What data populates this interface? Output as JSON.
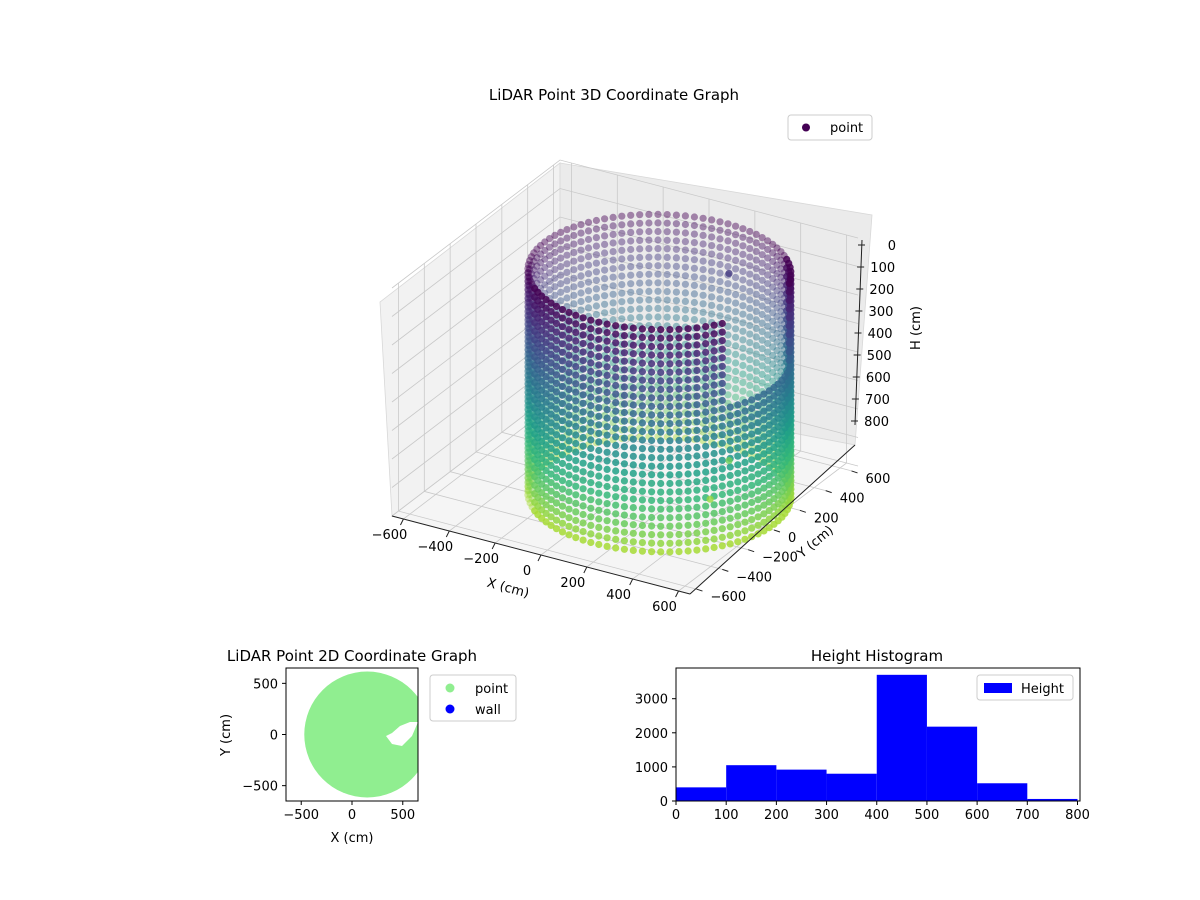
{
  "figure": {
    "background": "#ffffff"
  },
  "chart_data": [
    {
      "type": "scatter",
      "projection": "3d",
      "title": "LiDAR Point 3D Coordinate Graph",
      "xlabel": "X (cm)",
      "ylabel": "Y (cm)",
      "zlabel": "H (cm)",
      "x_ticks": [
        "−600",
        "−400",
        "−200",
        "0",
        "200",
        "400",
        "600"
      ],
      "y_ticks": [
        "−600",
        "−400",
        "−200",
        "0",
        "200",
        "400",
        "600"
      ],
      "z_ticks": [
        "0",
        "100",
        "200",
        "300",
        "400",
        "500",
        "600",
        "700",
        "800"
      ],
      "xlim": [
        -650,
        650
      ],
      "ylim": [
        -650,
        650
      ],
      "zlim": [
        0,
        800
      ],
      "z_inverted": true,
      "grid": true,
      "colormap": "viridis",
      "legend": {
        "position": "top-right",
        "entries": [
          {
            "label": "point",
            "color": "#440154"
          }
        ]
      },
      "shape": {
        "description_free": true,
        "cylinder_radius": 500,
        "height_range": [
          0,
          780
        ],
        "points_per_ring": 90
      },
      "outliers": [
        {
          "x": 330,
          "y": 220,
          "h": 700
        },
        {
          "x": 360,
          "y": 20,
          "h": 760
        },
        {
          "x": 200,
          "y": 450,
          "h": 150
        }
      ]
    },
    {
      "type": "scatter",
      "title": "LiDAR Point 2D Coordinate Graph",
      "xlabel": "X (cm)",
      "ylabel": "Y (cm)",
      "x_ticks": [
        "−500",
        "0",
        "500"
      ],
      "y_ticks": [
        "500",
        "0",
        "−500"
      ],
      "xlim": [
        -650,
        650
      ],
      "ylim": [
        -650,
        650
      ],
      "legend": {
        "position": "outside-right",
        "entries": [
          {
            "label": "point",
            "color": "#90ee90"
          },
          {
            "label": "wall",
            "color": "#0000ff"
          }
        ]
      },
      "area": {
        "center": [
          150,
          0
        ],
        "radius": 620,
        "color": "#90ee90"
      }
    },
    {
      "type": "bar",
      "subtype": "histogram",
      "title": "Height Histogram",
      "x_ticks": [
        "0",
        "100",
        "200",
        "300",
        "400",
        "500",
        "600",
        "700",
        "800"
      ],
      "y_ticks": [
        "0",
        "1000",
        "2000",
        "3000"
      ],
      "xlim": [
        0,
        805
      ],
      "ylim": [
        0,
        3900
      ],
      "bin_edges": [
        0,
        100,
        200,
        300,
        400,
        500,
        600,
        700,
        800
      ],
      "values": [
        400,
        1050,
        920,
        800,
        3700,
        2180,
        520,
        60
      ],
      "color": "#0000ff",
      "legend": {
        "position": "top-right",
        "entries": [
          {
            "label": "Height",
            "color": "#0000ff"
          }
        ]
      }
    }
  ]
}
